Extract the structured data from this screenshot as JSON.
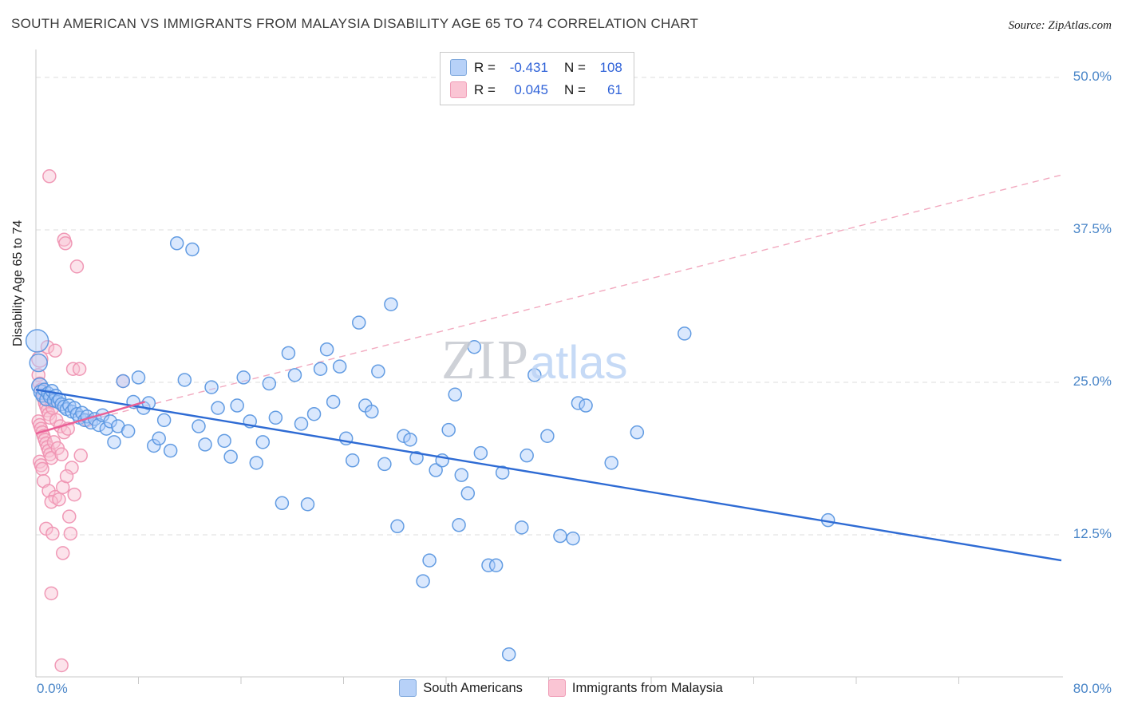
{
  "header": {
    "title": "SOUTH AMERICAN VS IMMIGRANTS FROM MALAYSIA DISABILITY AGE 65 TO 74 CORRELATION CHART",
    "source": "Source: ZipAtlas.com"
  },
  "watermark": {
    "zip": "ZIP",
    "atlas": "atlas"
  },
  "correlation_legend": {
    "series1": {
      "r_label": "R =",
      "r_value": "-0.431",
      "n_label": "N =",
      "n_value": "108"
    },
    "series2": {
      "r_label": "R =",
      "r_value": "0.045",
      "n_label": "N =",
      "n_value": "61"
    }
  },
  "bottom_legend": {
    "series1": "South Americans",
    "series2": "Immigrants from Malaysia"
  },
  "axes": {
    "x_min_label": "0.0%",
    "x_max_label": "80.0%",
    "y_tick_labels": [
      "50.0%",
      "37.5%",
      "25.0%",
      "12.5%"
    ],
    "y_tick_values": [
      50,
      37.5,
      25,
      12.5
    ]
  },
  "colors": {
    "axis_label_blue": "#4a86c8",
    "value_blue": "#2f62d8",
    "grid": "#dedede",
    "axis": "#c9c9c9"
  },
  "chart_data": {
    "type": "scatter",
    "title": "South American vs Immigrants from Malaysia Disability Age 65 to 74 Correlation Chart",
    "xlabel": "",
    "ylabel": "Disability Age 65 to 74",
    "x_range": [
      0,
      80
    ],
    "y_range": [
      0,
      52
    ],
    "grid": "horizontal-dashed",
    "legend_position": "top-center",
    "series": [
      {
        "name": "South Americans",
        "R": -0.431,
        "N": 108,
        "stroke": "#5b97e0",
        "fill": "#aecbfa",
        "points": [
          [
            0.1,
            28.4,
            14
          ],
          [
            0.2,
            26.6,
            11
          ],
          [
            0.3,
            24.7,
            10
          ],
          [
            0.4,
            24.2,
            9
          ],
          [
            0.5,
            23.9
          ],
          [
            0.65,
            24.4
          ],
          [
            0.8,
            23.6
          ],
          [
            0.95,
            24.1
          ],
          [
            1.1,
            23.8
          ],
          [
            1.25,
            24.3
          ],
          [
            1.4,
            23.5
          ],
          [
            1.55,
            23.9
          ],
          [
            1.7,
            23.4
          ],
          [
            1.85,
            23.6
          ],
          [
            2.0,
            23.2
          ],
          [
            2.2,
            23.0
          ],
          [
            2.4,
            22.8
          ],
          [
            2.6,
            23.1
          ],
          [
            2.8,
            22.6
          ],
          [
            3.0,
            22.9
          ],
          [
            3.2,
            22.4
          ],
          [
            3.4,
            22.1
          ],
          [
            3.6,
            22.5
          ],
          [
            3.8,
            21.9
          ],
          [
            4.0,
            22.2
          ],
          [
            4.3,
            21.7
          ],
          [
            4.6,
            22.0
          ],
          [
            4.9,
            21.5
          ],
          [
            5.2,
            22.3
          ],
          [
            5.5,
            21.2
          ],
          [
            5.8,
            21.8
          ],
          [
            6.1,
            20.1
          ],
          [
            6.4,
            21.4
          ],
          [
            6.8,
            25.1
          ],
          [
            7.2,
            21.0
          ],
          [
            7.6,
            23.4
          ],
          [
            8.0,
            25.4
          ],
          [
            8.4,
            22.9
          ],
          [
            8.8,
            23.3
          ],
          [
            9.2,
            19.8
          ],
          [
            9.6,
            20.4
          ],
          [
            10.0,
            21.9
          ],
          [
            10.5,
            19.4
          ],
          [
            11.0,
            36.4
          ],
          [
            11.6,
            25.2
          ],
          [
            12.2,
            35.9
          ],
          [
            12.7,
            21.4
          ],
          [
            13.2,
            19.9
          ],
          [
            13.7,
            24.6
          ],
          [
            14.2,
            22.9
          ],
          [
            14.7,
            20.2
          ],
          [
            15.2,
            18.9
          ],
          [
            15.7,
            23.1
          ],
          [
            16.2,
            25.4
          ],
          [
            16.7,
            21.8
          ],
          [
            17.2,
            18.4
          ],
          [
            17.7,
            20.1
          ],
          [
            18.2,
            24.9
          ],
          [
            18.7,
            22.1
          ],
          [
            19.2,
            15.1
          ],
          [
            19.7,
            27.4
          ],
          [
            20.2,
            25.6
          ],
          [
            20.7,
            21.6
          ],
          [
            21.2,
            15.0
          ],
          [
            21.7,
            22.4
          ],
          [
            22.2,
            26.1
          ],
          [
            22.7,
            27.7
          ],
          [
            23.2,
            23.4
          ],
          [
            23.7,
            26.3
          ],
          [
            24.2,
            20.4
          ],
          [
            24.7,
            18.6
          ],
          [
            25.2,
            29.9
          ],
          [
            25.7,
            23.1
          ],
          [
            26.2,
            22.6
          ],
          [
            26.7,
            25.9
          ],
          [
            27.2,
            18.3
          ],
          [
            27.7,
            31.4
          ],
          [
            28.2,
            13.2
          ],
          [
            28.7,
            20.6
          ],
          [
            29.2,
            20.3
          ],
          [
            29.7,
            18.8
          ],
          [
            30.2,
            8.7
          ],
          [
            30.7,
            10.4
          ],
          [
            31.2,
            17.8
          ],
          [
            31.7,
            18.6
          ],
          [
            32.2,
            21.1
          ],
          [
            32.7,
            24.0
          ],
          [
            33.0,
            13.3
          ],
          [
            33.2,
            17.4
          ],
          [
            33.7,
            15.9
          ],
          [
            34.2,
            27.9
          ],
          [
            34.7,
            19.2
          ],
          [
            35.3,
            10.0
          ],
          [
            35.9,
            10.0
          ],
          [
            36.4,
            17.6
          ],
          [
            36.9,
            2.7
          ],
          [
            37.9,
            13.1
          ],
          [
            38.3,
            19.0
          ],
          [
            38.9,
            25.6
          ],
          [
            39.9,
            20.6
          ],
          [
            40.9,
            12.4
          ],
          [
            41.9,
            12.2
          ],
          [
            42.3,
            23.3
          ],
          [
            42.9,
            23.1
          ],
          [
            44.9,
            18.4
          ],
          [
            46.9,
            20.9
          ],
          [
            50.6,
            29.0
          ],
          [
            61.8,
            13.7
          ]
        ]
      },
      {
        "name": "Immigrants from Malaysia",
        "R": 0.045,
        "N": 61,
        "stroke": "#ef93b2",
        "fill": "#f9c2d3",
        "points": [
          [
            1.05,
            41.9
          ],
          [
            2.2,
            36.7
          ],
          [
            2.3,
            36.4
          ],
          [
            3.2,
            34.5
          ],
          [
            0.9,
            27.9
          ],
          [
            1.5,
            27.6
          ],
          [
            0.3,
            26.9,
            10
          ],
          [
            2.9,
            26.1
          ],
          [
            3.4,
            26.1
          ],
          [
            6.8,
            25.1
          ],
          [
            0.2,
            25.6
          ],
          [
            0.3,
            24.9
          ],
          [
            0.4,
            24.4
          ],
          [
            0.5,
            24.0
          ],
          [
            0.6,
            23.7
          ],
          [
            0.7,
            23.3
          ],
          [
            0.8,
            23.0
          ],
          [
            0.9,
            22.7
          ],
          [
            1.0,
            22.4
          ],
          [
            1.1,
            22.1
          ],
          [
            0.2,
            21.8
          ],
          [
            0.3,
            21.5
          ],
          [
            0.4,
            21.2
          ],
          [
            0.5,
            20.9
          ],
          [
            0.6,
            20.6
          ],
          [
            0.7,
            20.3
          ],
          [
            0.8,
            20.0
          ],
          [
            0.9,
            19.7
          ],
          [
            1.0,
            19.4
          ],
          [
            1.1,
            19.1
          ],
          [
            1.2,
            18.8
          ],
          [
            0.3,
            18.5
          ],
          [
            0.4,
            18.2
          ],
          [
            0.5,
            17.9
          ],
          [
            1.3,
            22.9
          ],
          [
            1.6,
            21.9
          ],
          [
            1.9,
            21.4
          ],
          [
            2.2,
            20.9
          ],
          [
            1.4,
            20.1
          ],
          [
            1.7,
            19.6
          ],
          [
            2.0,
            19.1
          ],
          [
            1.2,
            23.5
          ],
          [
            2.5,
            21.2
          ],
          [
            0.6,
            16.9
          ],
          [
            1.0,
            16.1
          ],
          [
            1.5,
            15.6
          ],
          [
            2.1,
            16.4
          ],
          [
            1.2,
            15.2
          ],
          [
            1.8,
            15.4
          ],
          [
            0.8,
            13.0
          ],
          [
            1.3,
            12.6
          ],
          [
            2.6,
            14.0
          ],
          [
            2.7,
            12.6
          ],
          [
            1.2,
            7.7
          ],
          [
            2.0,
            1.8
          ],
          [
            3.5,
            19.0
          ],
          [
            2.8,
            18.0
          ],
          [
            3.0,
            15.8
          ],
          [
            2.4,
            17.3
          ],
          [
            4.0,
            21.9
          ],
          [
            2.1,
            11.0
          ]
        ]
      }
    ],
    "trend_lines": [
      {
        "series": "South Americans",
        "style": "solid",
        "color": "#2e6bd4",
        "x": [
          0,
          80
        ],
        "y": [
          24.4,
          10.4
        ]
      },
      {
        "series": "Immigrants from Malaysia",
        "style": "solid",
        "color": "#ea5f96",
        "x": [
          0,
          8.5
        ],
        "y": [
          20.8,
          23.4
        ]
      },
      {
        "series": "Immigrants from Malaysia",
        "style": "dashed",
        "color": "#f2a9bf",
        "x": [
          0,
          80
        ],
        "y": [
          20.8,
          42.0
        ]
      }
    ]
  }
}
